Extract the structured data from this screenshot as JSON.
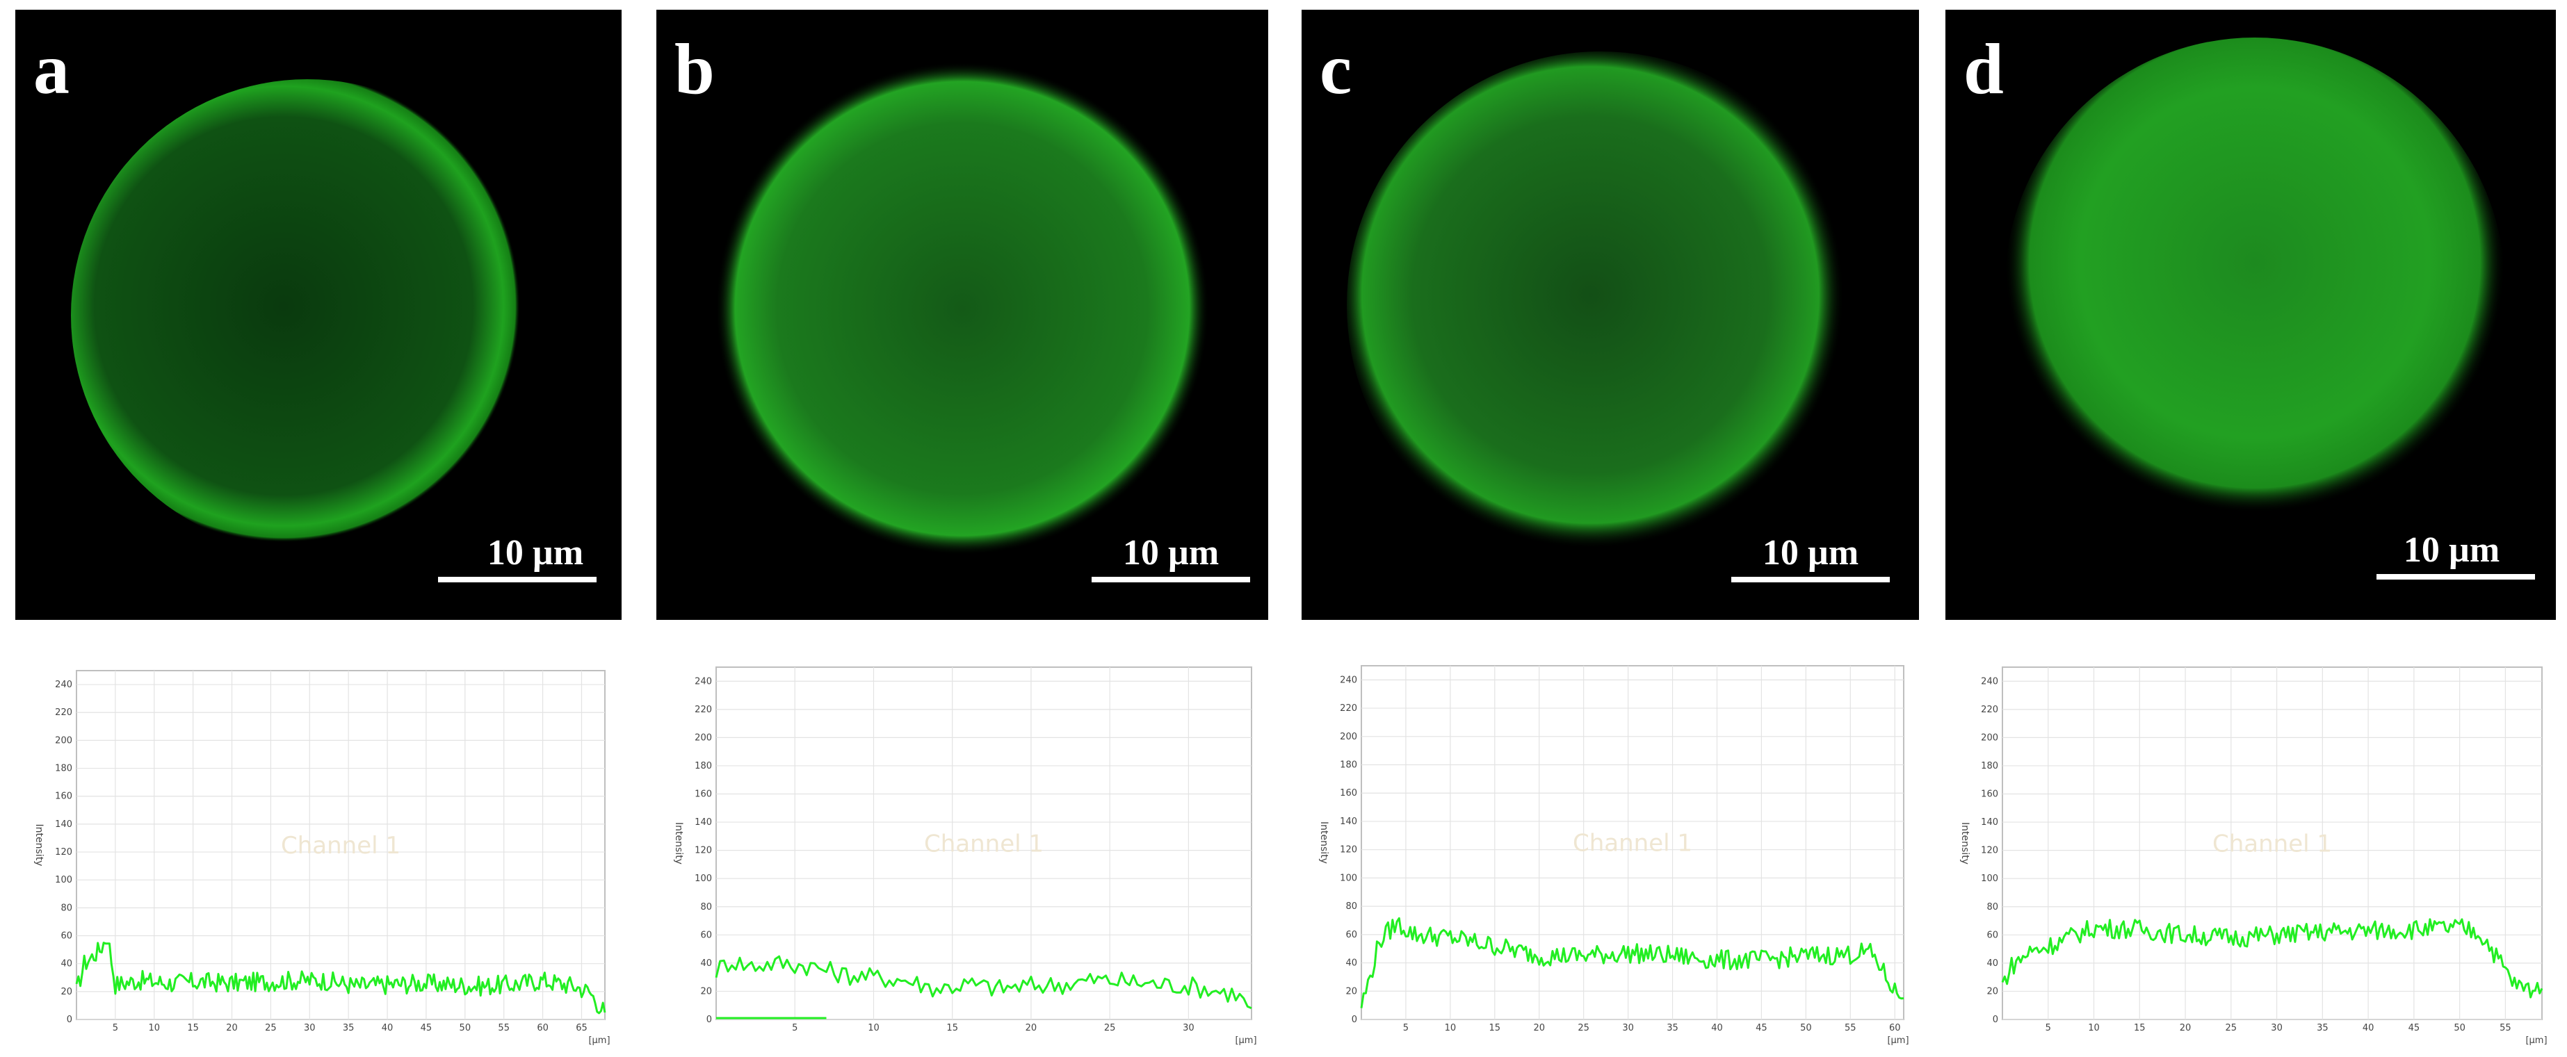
{
  "panels": [
    {
      "letter": "a",
      "scale_label": "10 µm",
      "ring_glow": 0.9,
      "chart_data": {
        "type": "line",
        "ylabel": "Intensity",
        "xunit": "[µm]",
        "overlay_label": "Channel 1",
        "ylim": [
          0,
          250
        ],
        "yticks": [
          0,
          20,
          40,
          60,
          80,
          100,
          120,
          140,
          160,
          180,
          200,
          220,
          240
        ],
        "xlim": [
          0,
          68
        ],
        "xticks": [
          5,
          10,
          15,
          20,
          25,
          30,
          35,
          40,
          45,
          50,
          55,
          60,
          65
        ],
        "color": "#22ee22",
        "series": [
          {
            "x": [
              0,
              1,
              2,
              3,
              4,
              5,
              8,
              12,
              16,
              20,
              24,
              28,
              32,
              36,
              40,
              44,
              48,
              52,
              56,
              60,
              64,
              66,
              67,
              68
            ],
            "y": [
              20,
              40,
              45,
              50,
              60,
              25,
              28,
              26,
              27,
              26,
              27,
              28,
              28,
              24,
              25,
              26,
              25,
              24,
              25,
              28,
              24,
              20,
              12,
              5
            ]
          }
        ]
      }
    },
    {
      "letter": "b",
      "scale_label": "10 µm",
      "ring_glow": 0.4,
      "chart_data": {
        "type": "line",
        "ylabel": "Intensity",
        "xunit": "[µm]",
        "overlay_label": "Channel 1",
        "ylim": [
          0,
          250
        ],
        "yticks": [
          0,
          20,
          40,
          60,
          80,
          100,
          120,
          140,
          160,
          180,
          200,
          220,
          240
        ],
        "xlim": [
          0,
          34
        ],
        "xticks": [
          5,
          10,
          15,
          20,
          25,
          30
        ],
        "color": "#22ee22",
        "series": [
          {
            "x": [
              0,
              1,
              2,
              4,
              6,
              8,
              10,
              12,
              14,
              16,
              18,
              20,
              22,
              24,
              26,
              28,
              30,
              32,
              33,
              34
            ],
            "y": [
              35,
              42,
              38,
              40,
              38,
              32,
              30,
              28,
              22,
              25,
              22,
              24,
              25,
              28,
              27,
              25,
              24,
              20,
              18,
              8
            ]
          },
          {
            "x": [
              0,
              7
            ],
            "y": [
              1,
              1
            ]
          }
        ]
      }
    },
    {
      "letter": "c",
      "scale_label": "10 µm",
      "ring_glow": 0.5,
      "chart_data": {
        "type": "line",
        "ylabel": "Intensity",
        "xunit": "[µm]",
        "overlay_label": "Channel 1",
        "ylim": [
          0,
          250
        ],
        "yticks": [
          0,
          20,
          40,
          60,
          80,
          100,
          120,
          140,
          160,
          180,
          200,
          220,
          240
        ],
        "xlim": [
          0,
          61
        ],
        "xticks": [
          5,
          10,
          15,
          20,
          25,
          30,
          35,
          40,
          45,
          50,
          55,
          60
        ],
        "color": "#22ee22",
        "series": [
          {
            "x": [
              0,
              1,
              2,
              3,
              4,
              6,
              10,
              15,
              20,
              25,
              30,
              35,
              40,
              45,
              50,
              55,
              57,
              58,
              59,
              60,
              61
            ],
            "y": [
              10,
              30,
              55,
              62,
              68,
              60,
              58,
              52,
              45,
              45,
              47,
              45,
              42,
              42,
              45,
              46,
              48,
              42,
              30,
              20,
              15
            ]
          }
        ]
      }
    },
    {
      "letter": "d",
      "scale_label": "10 µm",
      "ring_glow": 0.2,
      "chart_data": {
        "type": "line",
        "ylabel": "Intensity",
        "xunit": "[µm]",
        "overlay_label": "Channel 1",
        "ylim": [
          0,
          250
        ],
        "yticks": [
          0,
          20,
          40,
          60,
          80,
          100,
          120,
          140,
          160,
          180,
          200,
          220,
          240
        ],
        "xlim": [
          0,
          59
        ],
        "xticks": [
          5,
          10,
          15,
          20,
          25,
          30,
          35,
          40,
          45,
          50,
          55
        ],
        "color": "#22ee22",
        "series": [
          {
            "x": [
              0,
              1,
              3,
              5,
              8,
              10,
              15,
              20,
              25,
              30,
              35,
              40,
              45,
              50,
              52,
              53,
              54,
              55,
              56,
              57,
              58,
              59
            ],
            "y": [
              25,
              38,
              48,
              52,
              60,
              65,
              64,
              60,
              58,
              60,
              62,
              63,
              64,
              65,
              62,
              55,
              45,
              35,
              25,
              22,
              22,
              22
            ]
          }
        ]
      }
    }
  ]
}
